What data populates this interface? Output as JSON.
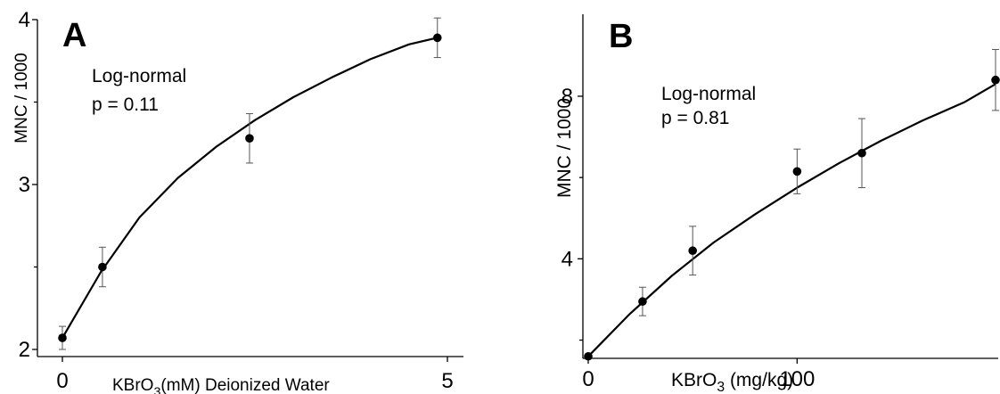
{
  "chart_data": [
    {
      "type": "scatter",
      "panel_label": "A",
      "annotation": [
        "Log-normal",
        "p = 0.11"
      ],
      "xlabel": {
        "main": "KBrO",
        "sub": "3",
        "rest": "(mM) Deionized Water"
      },
      "ylabel": "MNC / 1000",
      "xlim": [
        0,
        5
      ],
      "ylim": [
        2,
        4
      ],
      "xticks": [
        "0",
        "5"
      ],
      "yticks": [
        "2",
        "3",
        "4"
      ],
      "minor_yticks": [
        2.5,
        3.5
      ],
      "x": [
        0,
        0.52,
        2.43,
        4.87
      ],
      "y": [
        2.07,
        2.5,
        3.28,
        3.89
      ],
      "err": [
        0.07,
        0.12,
        0.15,
        0.12
      ],
      "fit": {
        "x": [
          0,
          0.5,
          1,
          1.5,
          2,
          2.5,
          3,
          3.5,
          4,
          4.5,
          4.87
        ],
        "y": [
          2.07,
          2.47,
          2.8,
          3.04,
          3.23,
          3.39,
          3.53,
          3.65,
          3.76,
          3.85,
          3.89
        ]
      }
    },
    {
      "type": "scatter",
      "panel_label": "B",
      "annotation": [
        "Log-normal",
        "p = 0.81"
      ],
      "xlabel": {
        "main": "KBrO",
        "sub": "3",
        "rest": " (mg/kg)"
      },
      "ylabel": "MNC / 1000",
      "xlim": [
        0,
        195
      ],
      "ylim": [
        1.2,
        9.6
      ],
      "xticks": [
        "0",
        "100"
      ],
      "yticks": [
        "4",
        "8"
      ],
      "minor_yticks": [
        2,
        6
      ],
      "x": [
        0,
        26,
        50,
        100,
        131,
        195
      ],
      "y": [
        1.6,
        2.95,
        4.2,
        6.15,
        6.6,
        8.4
      ],
      "err": [
        0,
        0.35,
        0.6,
        0.55,
        0.85,
        0.75
      ],
      "fit": {
        "x": [
          0,
          20,
          40,
          60,
          80,
          100,
          120,
          140,
          160,
          180,
          195
        ],
        "y": [
          1.6,
          2.65,
          3.58,
          4.4,
          5.1,
          5.75,
          6.35,
          6.9,
          7.4,
          7.85,
          8.3
        ]
      }
    }
  ]
}
